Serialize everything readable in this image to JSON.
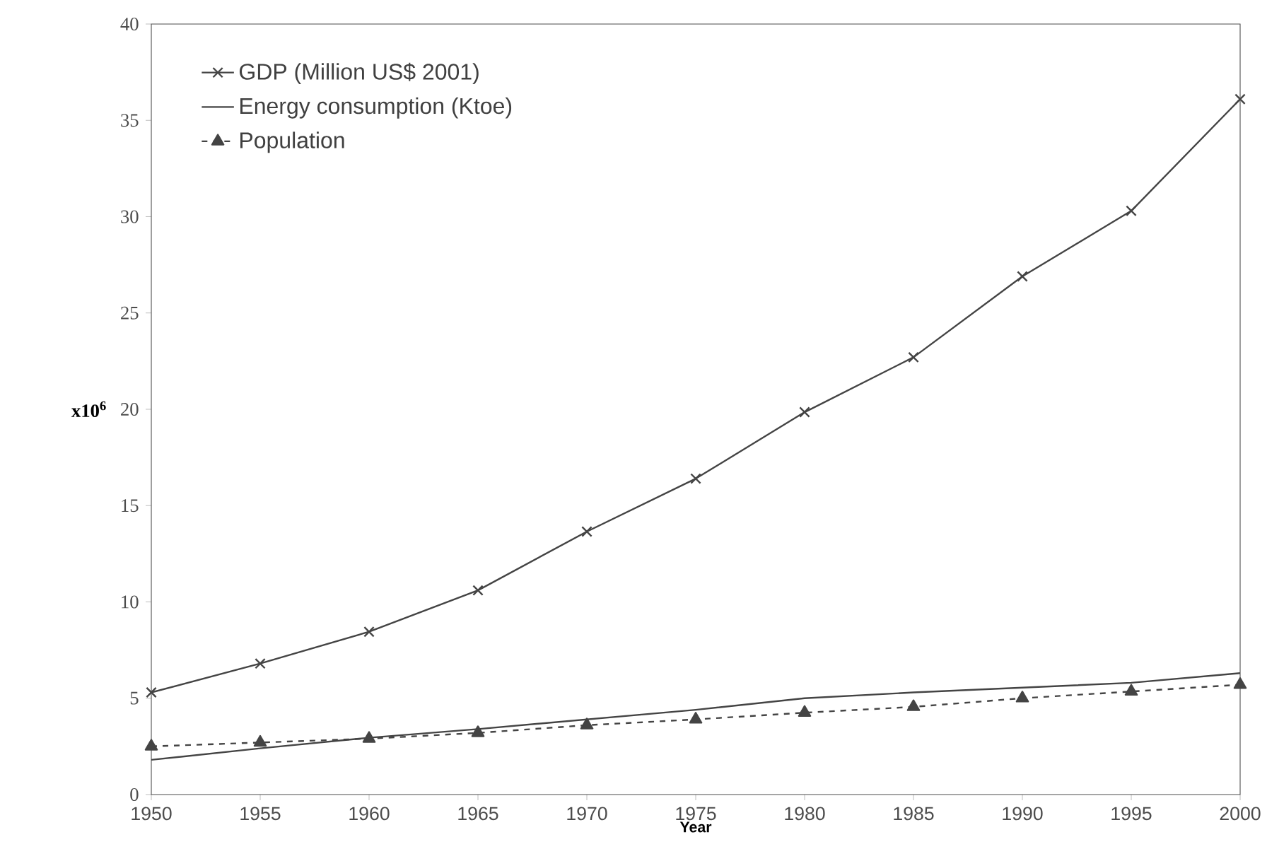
{
  "chart_data": {
    "type": "line",
    "xlabel": "Year",
    "ylabel": "x10$^{6}$",
    "x": [
      1950,
      1955,
      1960,
      1965,
      1970,
      1975,
      1980,
      1985,
      1990,
      1995,
      2000
    ],
    "xlim": [
      1950,
      2000
    ],
    "xticks": [
      1950,
      1955,
      1960,
      1965,
      1970,
      1975,
      1980,
      1985,
      1990,
      1995,
      2000
    ],
    "ylim": [
      0,
      40
    ],
    "yticks": [
      0,
      5,
      10,
      15,
      20,
      25,
      30,
      35,
      40
    ],
    "grid": false,
    "legend": "top left",
    "series": [
      {
        "name": "GDP (Million US$ 2001)",
        "color": "#444444",
        "marker": "cross",
        "line_style": "solid",
        "values": [
          5.3,
          6.8,
          8.45,
          10.6,
          13.65,
          16.4,
          19.85,
          22.7,
          26.9,
          30.3,
          36.1
        ]
      },
      {
        "name": "Energy consumption (Ktoe)",
        "color": "#444444",
        "marker": "none",
        "line_style": "solid",
        "values": [
          1.8,
          2.4,
          2.95,
          3.4,
          3.9,
          4.4,
          5.0,
          5.3,
          5.55,
          5.8,
          6.3
        ]
      },
      {
        "name": "Population",
        "color": "#444444",
        "marker": "triangle",
        "line_style": "dashed",
        "values": [
          2.5,
          2.7,
          2.9,
          3.2,
          3.6,
          3.9,
          4.25,
          4.55,
          5.0,
          5.35,
          5.7
        ]
      }
    ]
  }
}
